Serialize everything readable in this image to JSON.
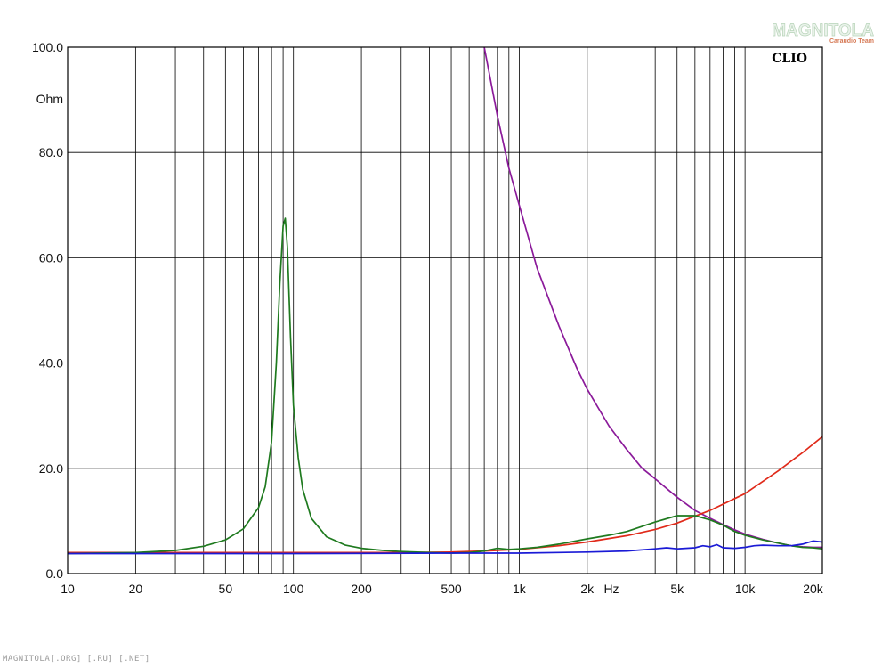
{
  "chart_data": {
    "type": "line",
    "x_scale": "log",
    "xlim": [
      10,
      22000
    ],
    "ylim": [
      0,
      100
    ],
    "y_unit": "Ohm",
    "x_unit": "Hz",
    "brand": "CLIO",
    "grid": true,
    "x_ticks": [
      {
        "value": 10,
        "label": "10"
      },
      {
        "value": 20,
        "label": "20"
      },
      {
        "value": 50,
        "label": "50"
      },
      {
        "value": 100,
        "label": "100"
      },
      {
        "value": 200,
        "label": "200"
      },
      {
        "value": 500,
        "label": "500"
      },
      {
        "value": 1000,
        "label": "1k"
      },
      {
        "value": 2000,
        "label": "2k"
      },
      {
        "value": 5000,
        "label": "5k"
      },
      {
        "value": 10000,
        "label": "10k"
      },
      {
        "value": 20000,
        "label": "20k"
      }
    ],
    "y_ticks": [
      {
        "value": 0,
        "label": "0.0"
      },
      {
        "value": 20,
        "label": "20.0"
      },
      {
        "value": 40,
        "label": "40.0"
      },
      {
        "value": 60,
        "label": "60.0"
      },
      {
        "value": 80,
        "label": "80.0"
      },
      {
        "value": 100,
        "label": "100.0"
      }
    ],
    "series": [
      {
        "color": "#8b1a9a",
        "x": [
          700,
          800,
          900,
          1000,
          1200,
          1500,
          1800,
          2000,
          2500,
          3000,
          3500,
          4000,
          5000,
          6000,
          7000,
          8000,
          9000,
          10000,
          12000,
          14000,
          16000,
          18000,
          20000,
          22000
        ],
        "y": [
          100,
          87,
          77,
          70,
          58,
          47,
          39,
          35,
          28,
          23.5,
          20,
          18,
          14.5,
          12,
          10.5,
          9.3,
          8.3,
          7.5,
          6.5,
          5.8,
          5.3,
          5.1,
          5.0,
          5.0
        ]
      },
      {
        "color": "#e02a1a",
        "x": [
          10,
          50,
          100,
          200,
          300,
          500,
          700,
          1000,
          1500,
          2000,
          3000,
          4000,
          5000,
          7000,
          10000,
          14000,
          18000,
          22000
        ],
        "y": [
          4.0,
          4.0,
          4.0,
          4.0,
          4.0,
          4.1,
          4.3,
          4.6,
          5.3,
          6.0,
          7.2,
          8.4,
          9.6,
          12.0,
          15.2,
          19.5,
          23.0,
          26.0
        ]
      },
      {
        "color": "#1f7a1f",
        "x": [
          10,
          20,
          30,
          40,
          50,
          60,
          70,
          75,
          80,
          84,
          87,
          90,
          92,
          94,
          97,
          100,
          105,
          110,
          120,
          140,
          170,
          200,
          250,
          300,
          400,
          500,
          600,
          700,
          800,
          900,
          1000,
          1200,
          1500,
          2000,
          2500,
          3000,
          4000,
          5000,
          6000,
          7000,
          8000,
          9000,
          10000,
          12000,
          14000,
          16000,
          18000,
          20000,
          22000
        ],
        "y": [
          3.8,
          4.0,
          4.4,
          5.2,
          6.4,
          8.5,
          12.5,
          16.5,
          25,
          40,
          55,
          66,
          67.5,
          62,
          45,
          32,
          22,
          16,
          10.5,
          7.0,
          5.4,
          4.8,
          4.4,
          4.2,
          4.0,
          3.9,
          4.0,
          4.3,
          4.8,
          4.6,
          4.7,
          5.0,
          5.6,
          6.6,
          7.3,
          8.0,
          9.8,
          11.0,
          11.0,
          10.2,
          9.2,
          8.0,
          7.3,
          6.4,
          5.8,
          5.3,
          5.0,
          4.9,
          4.7
        ]
      },
      {
        "color": "#1a1ad6",
        "x": [
          10,
          100,
          500,
          1000,
          2000,
          3000,
          4000,
          4500,
          5000,
          6000,
          6500,
          7000,
          7500,
          8000,
          9000,
          10000,
          11000,
          12000,
          14000,
          16000,
          18000,
          19000,
          20000,
          22000
        ],
        "y": [
          3.8,
          3.8,
          3.9,
          3.9,
          4.1,
          4.3,
          4.7,
          4.9,
          4.7,
          4.9,
          5.3,
          5.1,
          5.5,
          4.9,
          4.8,
          5.0,
          5.3,
          5.4,
          5.3,
          5.3,
          5.6,
          5.9,
          6.2,
          6.0
        ]
      }
    ]
  },
  "watermark": {
    "main": "MAGNITOLA",
    "sub": "Caraudio Team"
  },
  "footer": "MAGNITOLA[.ORG] [.RU] [.NET]"
}
